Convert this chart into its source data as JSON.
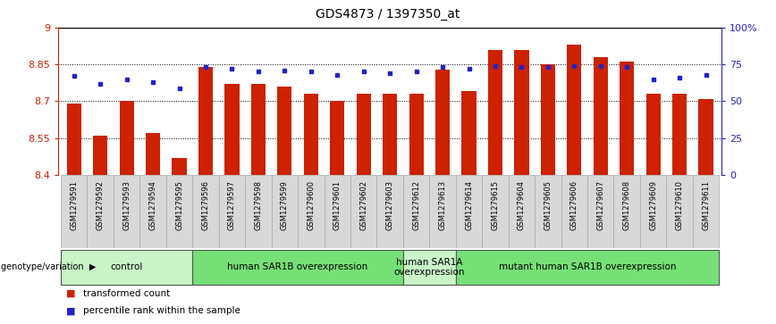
{
  "title": "GDS4873 / 1397350_at",
  "samples": [
    "GSM1279591",
    "GSM1279592",
    "GSM1279593",
    "GSM1279594",
    "GSM1279595",
    "GSM1279596",
    "GSM1279597",
    "GSM1279598",
    "GSM1279599",
    "GSM1279600",
    "GSM1279601",
    "GSM1279602",
    "GSM1279603",
    "GSM1279612",
    "GSM1279613",
    "GSM1279614",
    "GSM1279615",
    "GSM1279604",
    "GSM1279605",
    "GSM1279606",
    "GSM1279607",
    "GSM1279608",
    "GSM1279609",
    "GSM1279610",
    "GSM1279611"
  ],
  "bar_values": [
    8.69,
    8.56,
    8.7,
    8.57,
    8.47,
    8.84,
    8.77,
    8.77,
    8.76,
    8.73,
    8.7,
    8.73,
    8.73,
    8.73,
    8.83,
    8.74,
    8.91,
    8.91,
    8.85,
    8.93,
    8.88,
    8.86,
    8.73,
    8.73,
    8.71
  ],
  "percentile_values": [
    67,
    62,
    65,
    63,
    59,
    73,
    72,
    70,
    71,
    70,
    68,
    70,
    69,
    70,
    73,
    72,
    74,
    73,
    73,
    74,
    74,
    73,
    65,
    66,
    68
  ],
  "groups": [
    {
      "label": "control",
      "start": 0,
      "end": 5,
      "color": "#c8f4c8"
    },
    {
      "label": "human SAR1B overexpression",
      "start": 5,
      "end": 13,
      "color": "#76e076"
    },
    {
      "label": "human SAR1A\noverexpression",
      "start": 13,
      "end": 15,
      "color": "#c8f4c8"
    },
    {
      "label": "mutant human SAR1B overexpression",
      "start": 15,
      "end": 25,
      "color": "#76e076"
    }
  ],
  "ylim": [
    8.4,
    9.0
  ],
  "y_ticks": [
    8.4,
    8.55,
    8.7,
    8.85,
    9.0
  ],
  "y_tick_labels": [
    "8.4",
    "8.55",
    "8.7",
    "8.85",
    "9"
  ],
  "bar_color": "#cc2200",
  "percentile_color": "#2222cc",
  "right_y_ticks": [
    0,
    25,
    50,
    75,
    100
  ],
  "right_y_tick_labels": [
    "0",
    "25",
    "50",
    "75",
    "100%"
  ],
  "genotype_label": "genotype/variation",
  "legend_items": [
    {
      "color": "#cc2200",
      "label": "transformed count"
    },
    {
      "color": "#2222cc",
      "label": "percentile rank within the sample"
    }
  ]
}
